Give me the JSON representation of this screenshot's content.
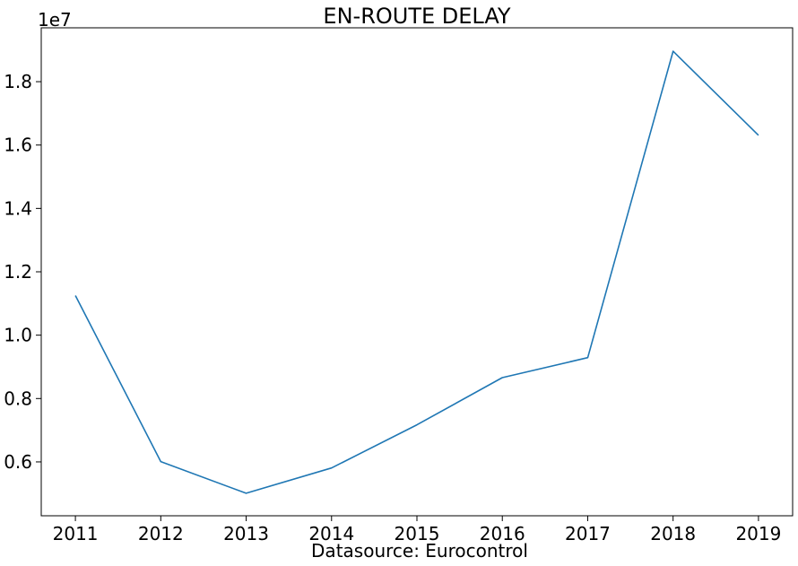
{
  "chart_data": {
    "type": "line",
    "title": "EN-ROUTE DELAY",
    "xlabel": "Datasource: Eurocontrol",
    "ylabel": "",
    "y_offset_label": "1e7",
    "x": [
      2011,
      2012,
      2013,
      2014,
      2015,
      2016,
      2017,
      2018,
      2019
    ],
    "x_tick_labels": [
      "2011",
      "2012",
      "2013",
      "2014",
      "2015",
      "2016",
      "2017",
      "2018",
      "2019"
    ],
    "y_ticks": [
      0.6,
      0.8,
      1.0,
      1.2,
      1.4,
      1.6,
      1.8
    ],
    "y_tick_labels": [
      "0.6",
      "0.8",
      "1.0",
      "1.2",
      "1.4",
      "1.6",
      "1.8"
    ],
    "xlim": [
      2010.6,
      2019.4
    ],
    "ylim": [
      0.43,
      1.97
    ],
    "series": [
      {
        "name": "",
        "color": "#1f77b4",
        "values": [
          1.125,
          0.601,
          0.501,
          0.581,
          0.717,
          0.866,
          0.929,
          1.896,
          1.631
        ]
      }
    ],
    "grid": false,
    "legend": "none"
  }
}
